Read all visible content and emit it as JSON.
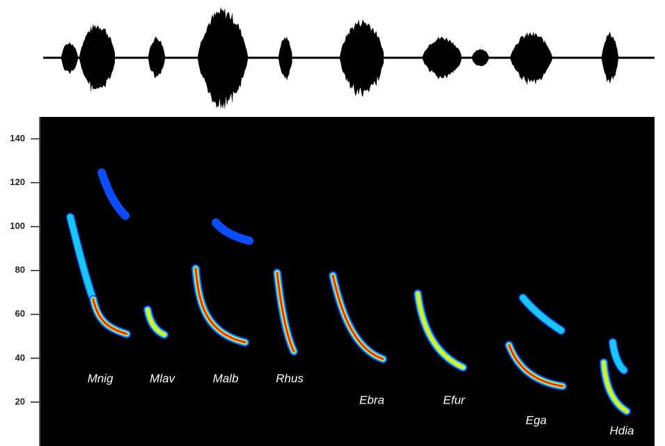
{
  "chart_data": {
    "type": "spectrogram",
    "ylim": [
      0,
      150
    ],
    "yticks": [
      20,
      40,
      60,
      80,
      100,
      120,
      140
    ],
    "annotations": [
      "Mnig",
      "Mlav",
      "Malb",
      "Rhus",
      "Ebra",
      "Efur",
      "Ega",
      "Hdia"
    ]
  }
}
